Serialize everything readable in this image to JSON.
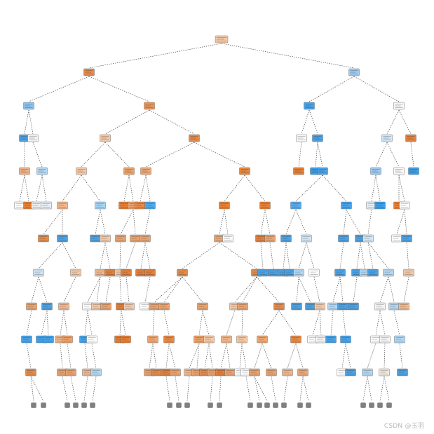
{
  "figure": {
    "type": "decision-tree-plot",
    "max_depth_shown": 10,
    "class_colors": {
      "orange_class": "#e58139",
      "blue_class": "#399de5",
      "truncated_node": "#808080",
      "edge": "#333333"
    }
  },
  "watermark": "CSDN @玉羽"
}
